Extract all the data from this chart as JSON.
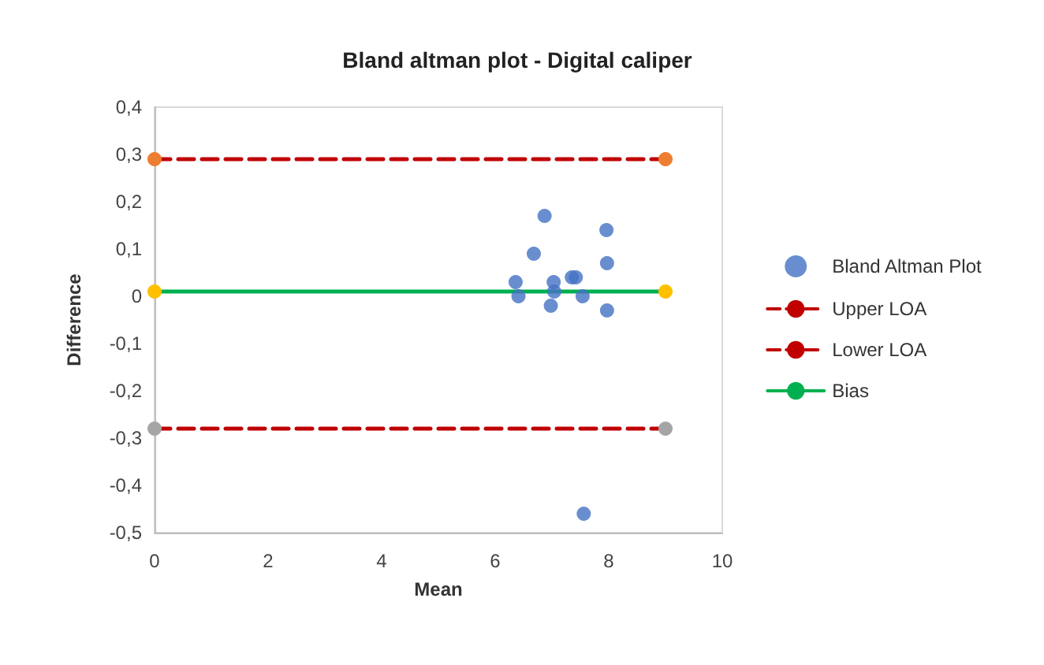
{
  "chart_data": {
    "type": "scatter",
    "title": "Bland altman plot - Digital caliper",
    "xlabel": "Mean",
    "ylabel": "Difference",
    "xlim": [
      0,
      10
    ],
    "xticks": [
      0,
      2,
      4,
      6,
      8,
      10
    ],
    "ylim": [
      -0.5,
      0.4
    ],
    "yticks": [
      {
        "value": -0.5,
        "label": "-0,5"
      },
      {
        "value": -0.4,
        "label": "-0,4"
      },
      {
        "value": -0.3,
        "label": "-0,3"
      },
      {
        "value": -0.2,
        "label": "-0,2"
      },
      {
        "value": -0.1,
        "label": "-0,1"
      },
      {
        "value": 0,
        "label": "0"
      },
      {
        "value": 0.1,
        "label": "0,1"
      },
      {
        "value": 0.2,
        "label": "0,2"
      },
      {
        "value": 0.3,
        "label": "0,3"
      },
      {
        "value": 0.4,
        "label": "0,4"
      }
    ],
    "grid": false,
    "legend": "right",
    "marker": "circle",
    "series": [
      {
        "name": "Bland Altman Plot",
        "color": "#4472c4",
        "x": [
          6.87,
          7.96,
          6.68,
          7.97,
          6.36,
          7.03,
          7.35,
          7.42,
          6.41,
          7.04,
          7.54,
          6.98,
          7.97,
          7.56
        ],
        "values": [
          0.17,
          0.14,
          0.09,
          0.07,
          0.03,
          0.03,
          0.04,
          0.04,
          0,
          0.01,
          0,
          -0.02,
          -0.03,
          -0.46
        ]
      },
      {
        "name": "Upper LOA",
        "type": "line",
        "line_style": "dashed",
        "color": "#c00000",
        "colors": [
          "#ed7d31",
          "#ed7d31"
        ],
        "x": [
          0,
          9
        ],
        "values": [
          0.29,
          0.29
        ]
      },
      {
        "name": "Lower LOA",
        "type": "line",
        "line_style": "dashed",
        "color": "#c00000",
        "colors": [
          "#a5a5a5",
          "#a5a5a5"
        ],
        "x": [
          0,
          9
        ],
        "values": [
          -0.28,
          -0.28
        ]
      },
      {
        "name": "Bias",
        "type": "line",
        "line_style": "solid",
        "color": "#00b050",
        "colors": [
          "#ffc000",
          "#ffc000"
        ],
        "x": [
          0,
          9
        ],
        "values": [
          0.01,
          0.01
        ]
      }
    ]
  }
}
